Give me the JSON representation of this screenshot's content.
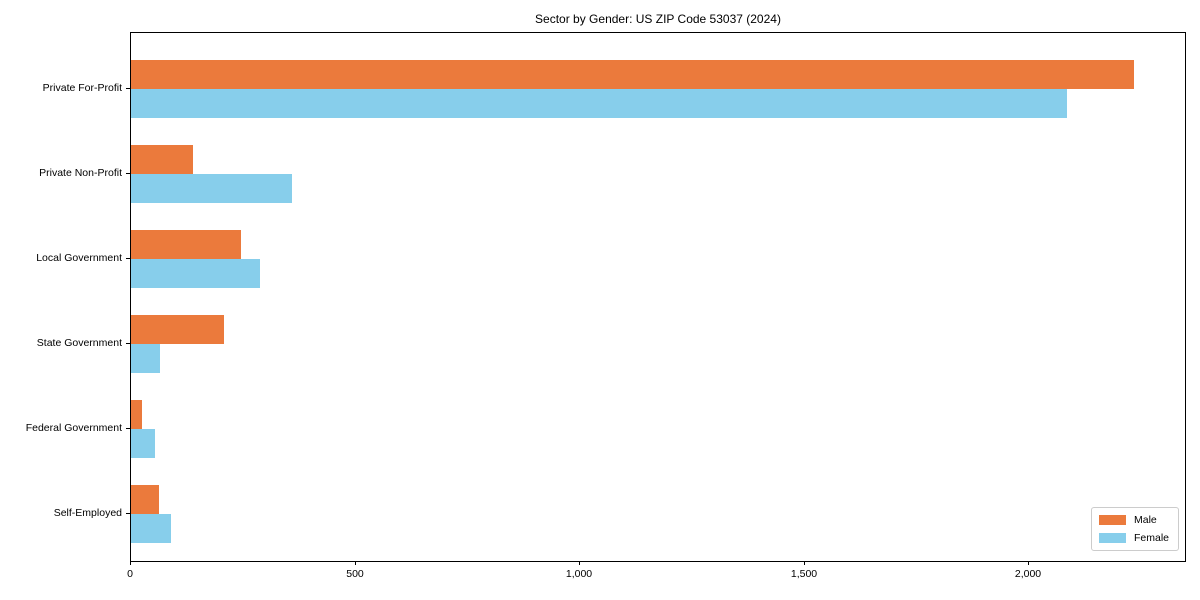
{
  "chart_data": {
    "type": "bar",
    "orientation": "horizontal",
    "title": "Sector by Gender: US ZIP Code 53037 (2024)",
    "categories": [
      "Private For-Profit",
      "Private Non-Profit",
      "Local Government",
      "State Government",
      "Federal Government",
      "Self-Employed"
    ],
    "series": [
      {
        "name": "Male",
        "color": "#EB7A3C",
        "values": [
          2233,
          137,
          246,
          207,
          24,
          62
        ]
      },
      {
        "name": "Female",
        "color": "#87CEEB",
        "values": [
          2084,
          358,
          287,
          64,
          54,
          90
        ]
      }
    ],
    "xlabel": "",
    "ylabel": "",
    "xlim": [
      0,
      2347
    ],
    "xticks": [
      0,
      500,
      1000,
      1500,
      2000
    ],
    "xtick_labels": [
      "0",
      "500",
      "1,000",
      "1,500",
      "2,000"
    ],
    "grid": false,
    "legend_position": "lower right"
  }
}
